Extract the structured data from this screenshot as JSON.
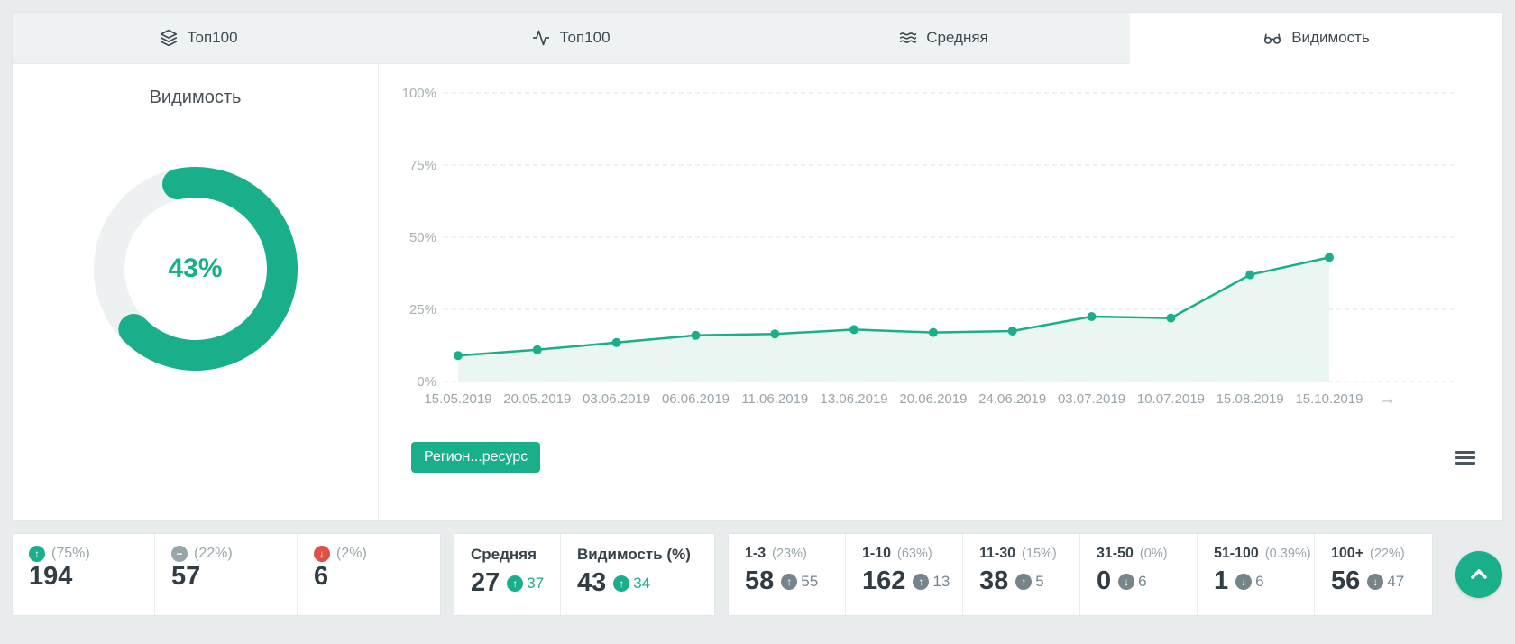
{
  "colors": {
    "accent_green": "#19af8a",
    "red": "#df5146",
    "gray_icon": "#97a4ab",
    "dark_change": "#76858c"
  },
  "icons": {
    "up_arrow": "↑",
    "down_arrow": "↓",
    "minus": "−",
    "more_dates": "→"
  },
  "tabs": [
    {
      "label": "Топ100",
      "icon": "layers-icon",
      "active": false
    },
    {
      "label": "Топ100",
      "icon": "activity-icon",
      "active": false
    },
    {
      "label": "Средняя",
      "icon": "waves-icon",
      "active": false
    },
    {
      "label": "Видимость",
      "icon": "glasses-icon",
      "active": true
    }
  ],
  "visibility_panel": {
    "title": "Видимость",
    "donut": {
      "percent_label": "43%",
      "arc_percent": 66
    }
  },
  "chart_data": {
    "type": "area",
    "title": "",
    "x": [
      "15.05.2019",
      "20.05.2019",
      "03.06.2019",
      "06.06.2019",
      "11.06.2019",
      "13.06.2019",
      "20.06.2019",
      "24.06.2019",
      "03.07.2019",
      "10.07.2019",
      "15.08.2019",
      "15.10.2019"
    ],
    "series": [
      {
        "name": "Регион...ресурс",
        "values": [
          9,
          11,
          13.5,
          16,
          16.5,
          18,
          17,
          17.5,
          22.5,
          22,
          37,
          43
        ]
      }
    ],
    "ylim": [
      0,
      100
    ],
    "yticks": [
      "0%",
      "25%",
      "50%",
      "75%",
      "100%"
    ],
    "grid": "horizontal-dashed",
    "legend_position": "bottom-left",
    "line_color": "#19af8a",
    "fill_color": "#e9f6f1"
  },
  "chart_footer": {
    "legend_label": "Регион...ресурс"
  },
  "stats": {
    "dynamics": [
      {
        "icon": "up-circle",
        "share": "(75%)",
        "value": "194"
      },
      {
        "icon": "minus-circle",
        "share": "(22%)",
        "value": "57"
      },
      {
        "icon": "down-circle",
        "share": "(2%)",
        "value": "6"
      }
    ],
    "averages": [
      {
        "label": "Средняя",
        "value": "27",
        "change": "37",
        "direction": "up"
      },
      {
        "label": "Видимость (%)",
        "value": "43",
        "change": "34",
        "direction": "up"
      }
    ],
    "positions": [
      {
        "label": "1-3",
        "share": "(23%)",
        "value": "58",
        "change": "55",
        "direction": "up"
      },
      {
        "label": "1-10",
        "share": "(63%)",
        "value": "162",
        "change": "13",
        "direction": "up"
      },
      {
        "label": "11-30",
        "share": "(15%)",
        "value": "38",
        "change": "5",
        "direction": "up"
      },
      {
        "label": "31-50",
        "share": "(0%)",
        "value": "0",
        "change": "6",
        "direction": "down"
      },
      {
        "label": "51-100",
        "share": "(0.39%)",
        "value": "1",
        "change": "6",
        "direction": "down"
      },
      {
        "label": "100+",
        "share": "(22%)",
        "value": "56",
        "change": "47",
        "direction": "down"
      }
    ]
  }
}
